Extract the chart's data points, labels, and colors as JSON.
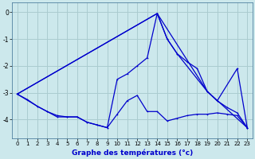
{
  "title": "Graphe des températures (°c)",
  "background_color": "#cce8ec",
  "grid_color": "#aaccd0",
  "line_color": "#0000cc",
  "xlim": [
    -0.5,
    23.5
  ],
  "ylim": [
    -4.7,
    0.35
  ],
  "yticks": [
    0,
    -1,
    -2,
    -3,
    -4
  ],
  "xticks": [
    0,
    1,
    2,
    3,
    4,
    5,
    6,
    7,
    8,
    9,
    10,
    11,
    12,
    13,
    14,
    15,
    16,
    17,
    18,
    19,
    20,
    21,
    22,
    23
  ],
  "series": [
    {
      "x": [
        0,
        1,
        2,
        3,
        4,
        5,
        6,
        7,
        8,
        9,
        10,
        11,
        12,
        13,
        14,
        15,
        16,
        17,
        18,
        19,
        20,
        21,
        22,
        23
      ],
      "y": [
        -3.05,
        -3.25,
        -3.5,
        -3.7,
        -3.85,
        -3.9,
        -3.9,
        -4.1,
        -4.2,
        -4.3,
        -3.8,
        -3.3,
        -3.1,
        -3.7,
        -3.7,
        -4.05,
        -3.95,
        -3.85,
        -3.8,
        -3.8,
        -3.75,
        -3.8,
        -3.85,
        -4.3
      ]
    },
    {
      "x": [
        0,
        2,
        3,
        4,
        5,
        6,
        7,
        8,
        9,
        10,
        11,
        12,
        13,
        14,
        15,
        16,
        17,
        18,
        19,
        20,
        21,
        22,
        23
      ],
      "y": [
        -3.05,
        -3.5,
        -3.7,
        -3.9,
        -3.9,
        -3.9,
        -4.1,
        -4.2,
        -4.3,
        -2.5,
        -2.3,
        -2.0,
        -1.7,
        -0.05,
        -1.0,
        -1.55,
        -1.85,
        -2.1,
        -2.95,
        -3.3,
        -3.55,
        -3.75,
        -4.3
      ]
    },
    {
      "x": [
        0,
        14,
        15,
        16,
        19,
        20,
        22,
        23
      ],
      "y": [
        -3.05,
        -0.05,
        -1.0,
        -1.55,
        -2.95,
        -3.3,
        -2.1,
        -4.3
      ]
    },
    {
      "x": [
        0,
        14,
        19,
        23
      ],
      "y": [
        -3.05,
        -0.05,
        -2.95,
        -4.3
      ]
    }
  ]
}
